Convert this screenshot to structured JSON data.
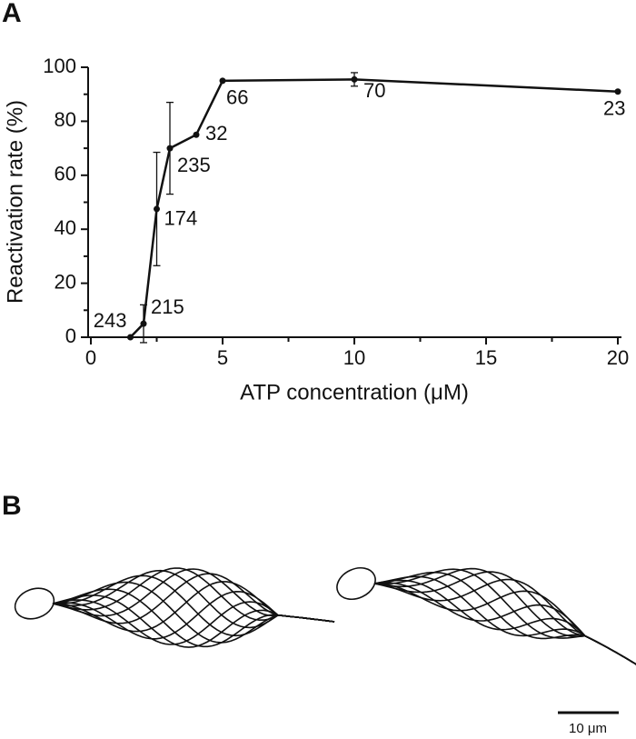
{
  "panels": [
    "A",
    "B"
  ],
  "scale_bar_label": "10 μm",
  "chart_data": {
    "type": "line",
    "x_label": "ATP concentration (μM)",
    "y_label": "Reactivation rate (%)",
    "x": [
      1.5,
      2,
      2.5,
      3,
      4,
      5,
      10,
      20
    ],
    "values": [
      0,
      5,
      47.5,
      70,
      75,
      95,
      95.5,
      91
    ],
    "errors": [
      null,
      7,
      21,
      17,
      null,
      null,
      2.5,
      null
    ],
    "n_labels": [
      "243",
      "215",
      "174",
      "235",
      "32",
      "66",
      "70",
      "23"
    ],
    "color": "#111111",
    "xlim": [
      0,
      20
    ],
    "xticks": [
      0,
      5,
      10,
      15,
      20
    ],
    "xminor_ticks": [
      2.5,
      7.5,
      12.5,
      17.5
    ],
    "ylim": [
      0,
      100
    ],
    "yticks": [
      0,
      20,
      40,
      60,
      80,
      100
    ],
    "yminor_ticks": [
      10,
      30,
      50,
      70,
      90
    ]
  }
}
